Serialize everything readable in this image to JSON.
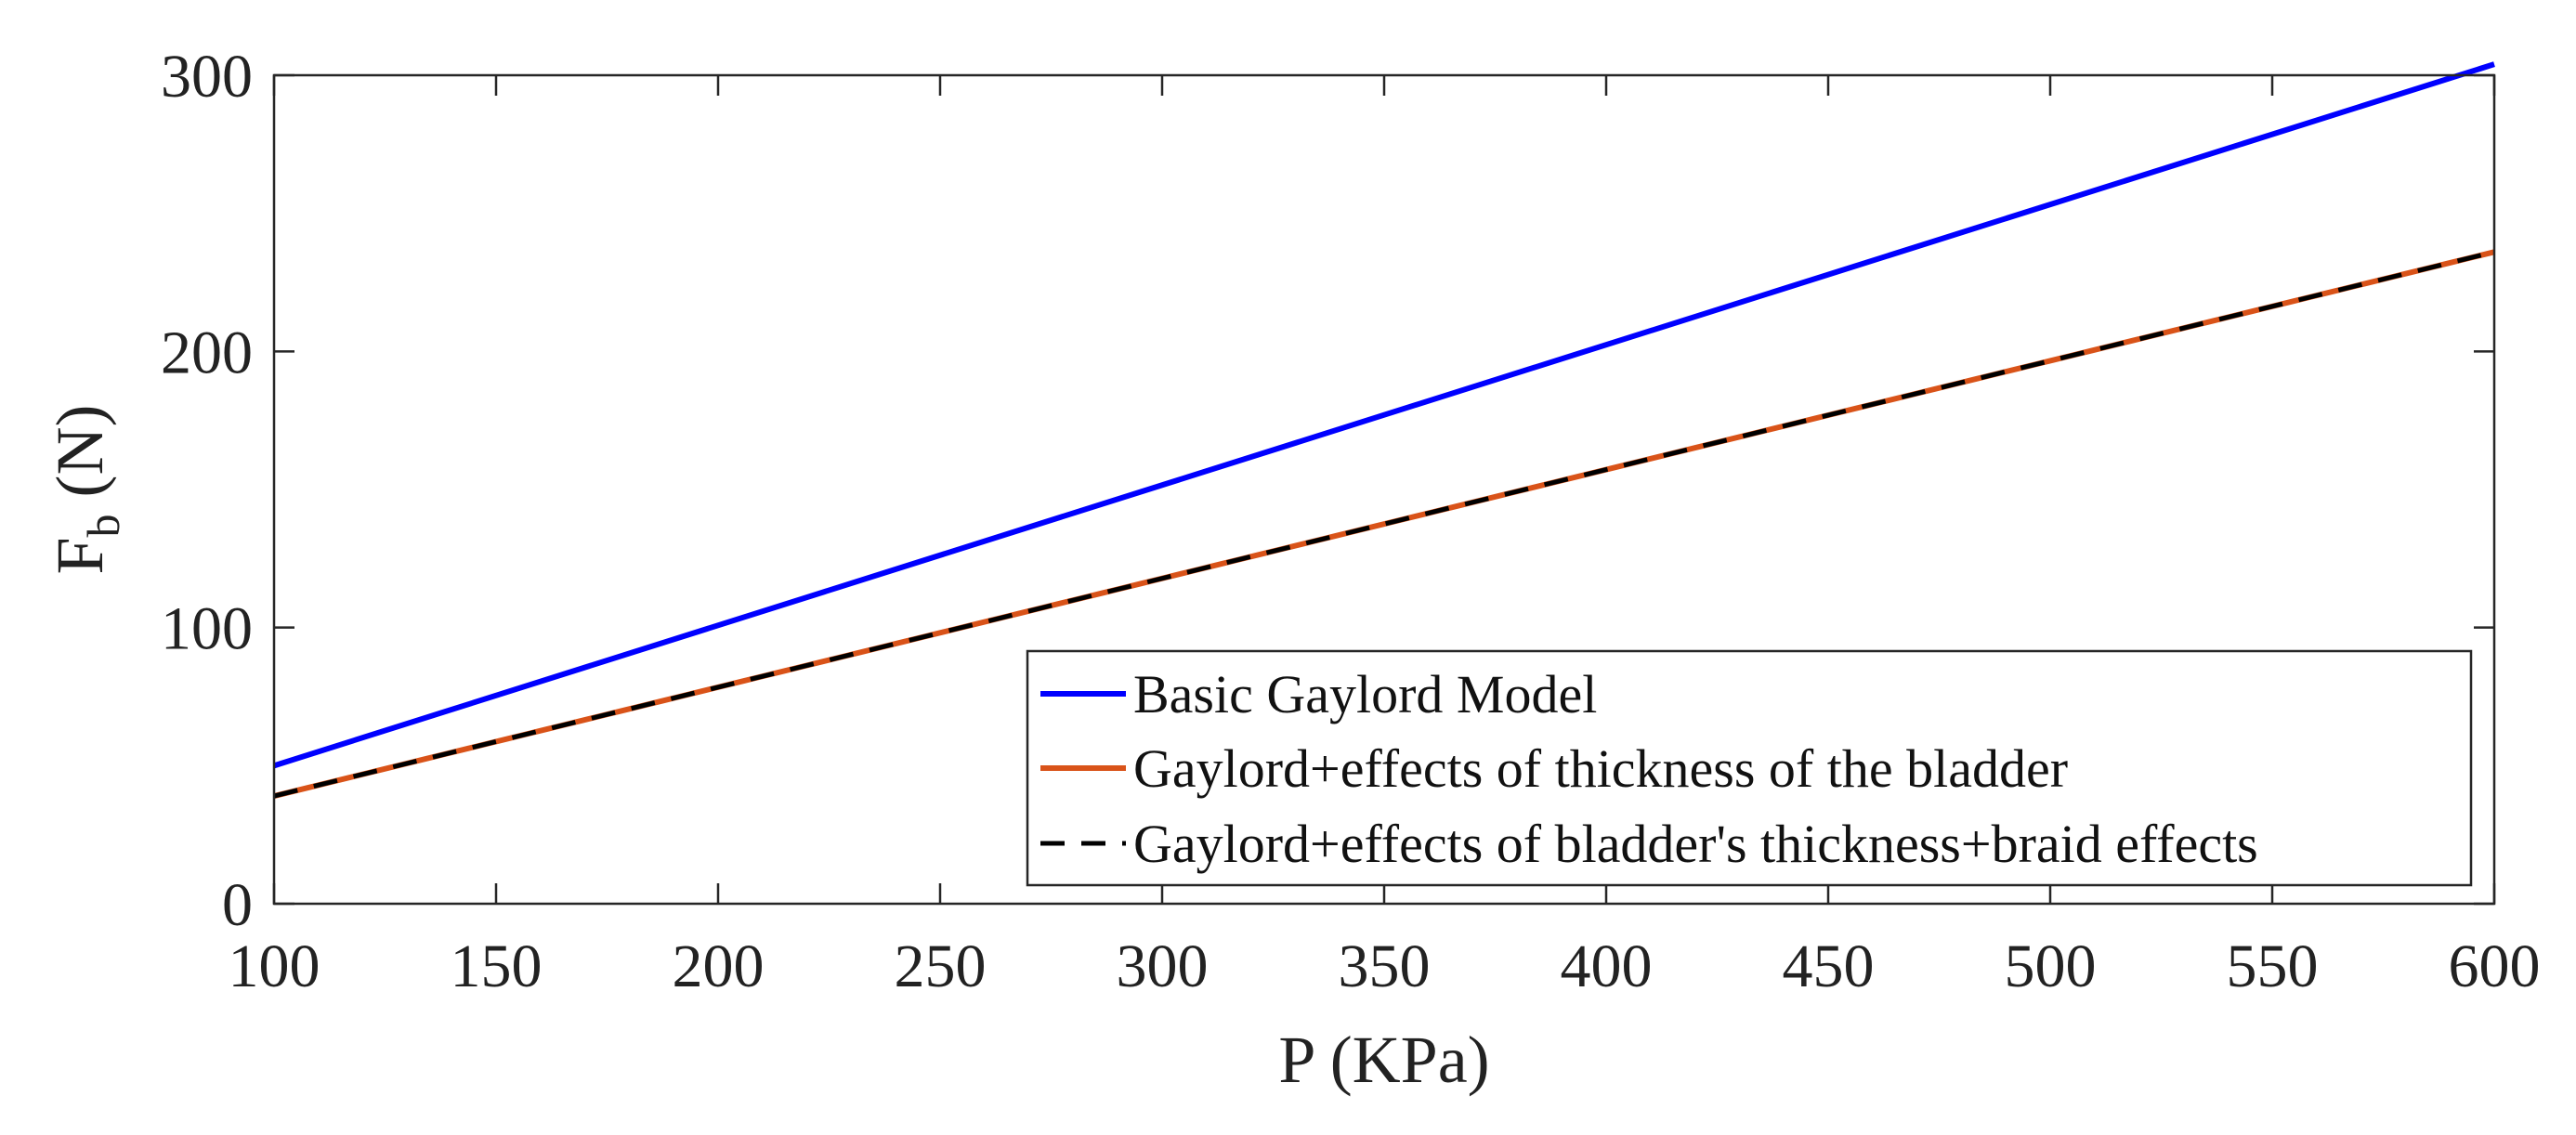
{
  "chart_data": {
    "type": "line",
    "title": "",
    "xlabel": "P (KPa)",
    "ylabel": {
      "main": "F",
      "subscript": "b",
      "unit": "(N)"
    },
    "xlim": [
      100,
      600
    ],
    "ylim": [
      0,
      300
    ],
    "xticks": [
      100,
      150,
      200,
      250,
      300,
      350,
      400,
      450,
      500,
      550,
      600
    ],
    "yticks": [
      0,
      100,
      200,
      300
    ],
    "grid": false,
    "legend_position": "bottom-right",
    "series": [
      {
        "name": "Basic Gaylord Model",
        "color": "#0000ff",
        "style": "solid",
        "x": [
          100,
          600
        ],
        "y": [
          50,
          304
        ]
      },
      {
        "name": "Gaylord+effects of thickness of the bladder",
        "color": "#d95319",
        "style": "solid",
        "x": [
          100,
          600
        ],
        "y": [
          39,
          236
        ]
      },
      {
        "name": "Gaylord+effects of bladder's thickness+braid effects",
        "color": "#000000",
        "style": "dashed",
        "x": [
          100,
          600
        ],
        "y": [
          39,
          236
        ]
      }
    ]
  }
}
